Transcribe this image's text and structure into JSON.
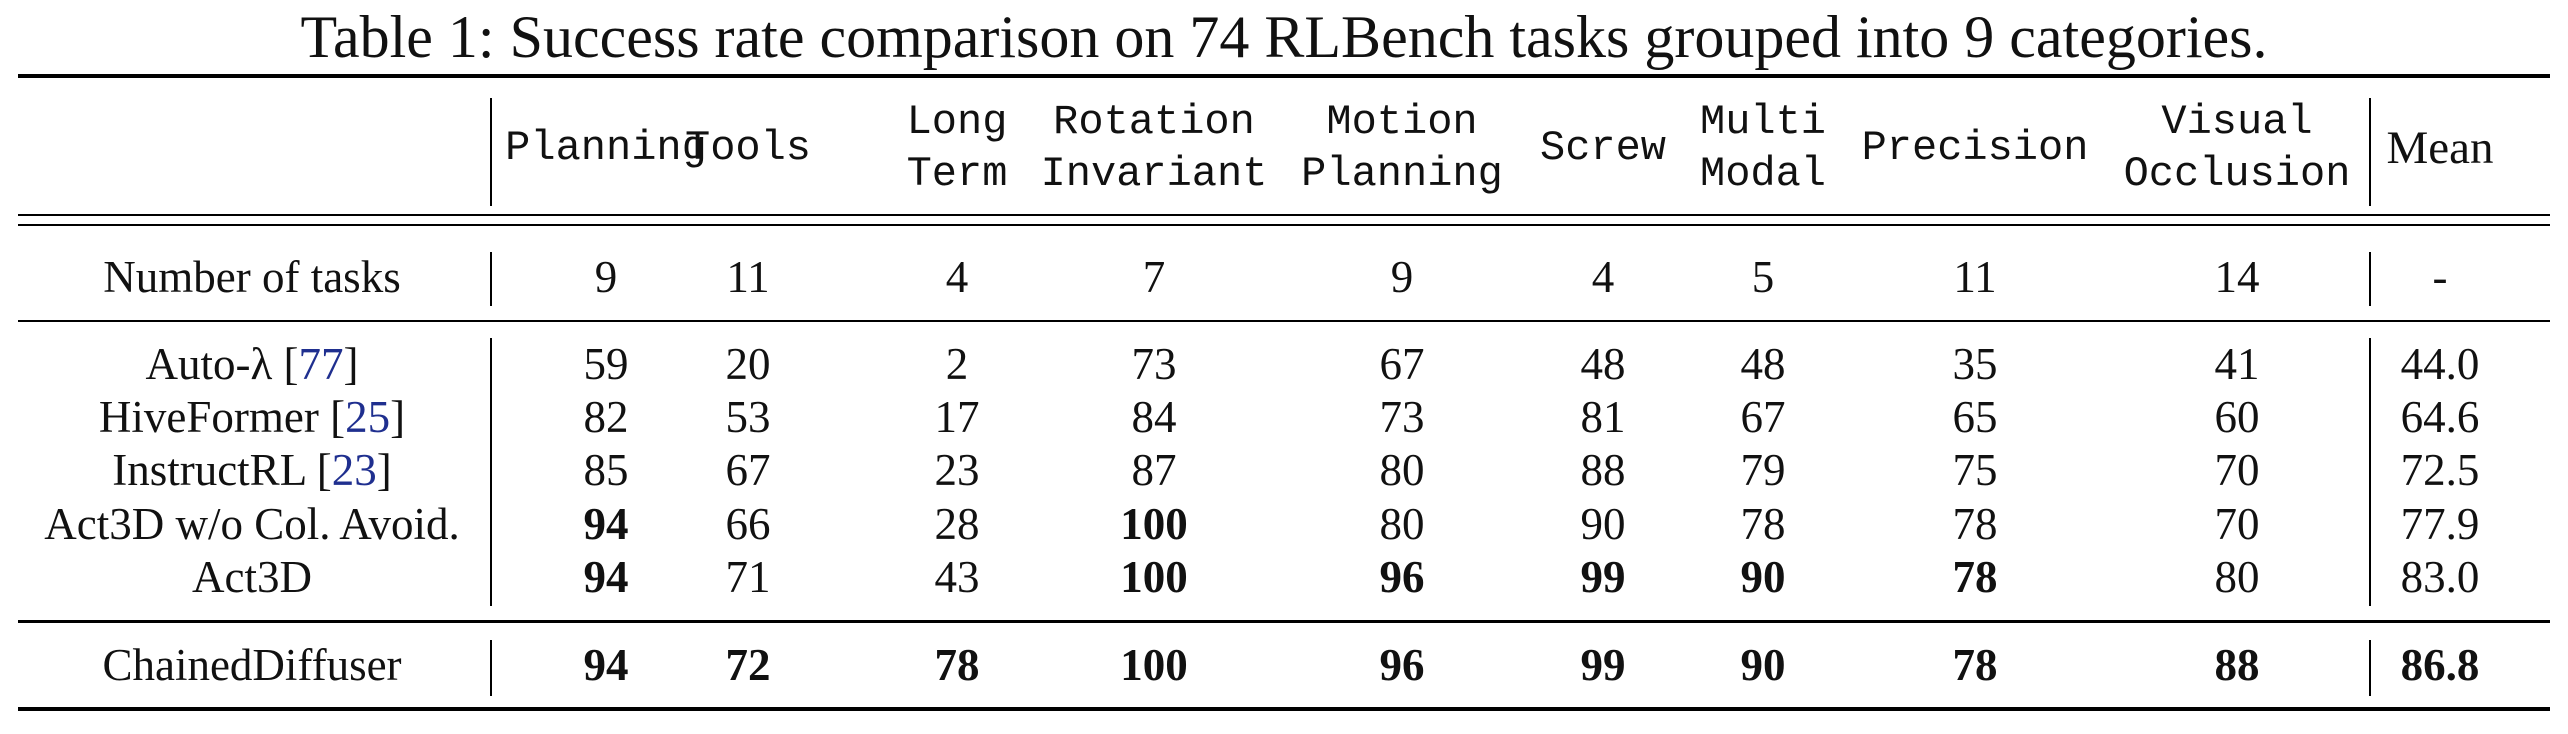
{
  "caption": "Table 1: Success rate comparison on 74 RLBench tasks grouped into 9 categories.",
  "columns": [
    {
      "line1": "Planning",
      "line2": ""
    },
    {
      "line1": "Tools",
      "line2": ""
    },
    {
      "line1": "Long",
      "line2": "Term"
    },
    {
      "line1": "Rotation",
      "line2": "Invariant"
    },
    {
      "line1": "Motion",
      "line2": "Planning"
    },
    {
      "line1": "Screw",
      "line2": ""
    },
    {
      "line1": "Multi",
      "line2": "Modal"
    },
    {
      "line1": "Precision",
      "line2": ""
    },
    {
      "line1": "Visual",
      "line2": "Occlusion"
    }
  ],
  "mean_header": "Mean",
  "tasks_row": {
    "label": "Number of tasks",
    "values": [
      "9",
      "11",
      "4",
      "7",
      "9",
      "4",
      "5",
      "11",
      "14"
    ],
    "mean": "-"
  },
  "baselines": [
    {
      "name": "Auto-λ",
      "cite": "77",
      "values": [
        "59",
        "20",
        "2",
        "73",
        "67",
        "48",
        "48",
        "35",
        "41"
      ],
      "bold": [
        false,
        false,
        false,
        false,
        false,
        false,
        false,
        false,
        false
      ],
      "mean": "44.0",
      "mean_bold": false
    },
    {
      "name": "HiveFormer",
      "cite": "25",
      "values": [
        "82",
        "53",
        "17",
        "84",
        "73",
        "81",
        "67",
        "65",
        "60"
      ],
      "bold": [
        false,
        false,
        false,
        false,
        false,
        false,
        false,
        false,
        false
      ],
      "mean": "64.6",
      "mean_bold": false
    },
    {
      "name": "InstructRL",
      "cite": "23",
      "values": [
        "85",
        "67",
        "23",
        "87",
        "80",
        "88",
        "79",
        "75",
        "70"
      ],
      "bold": [
        false,
        false,
        false,
        false,
        false,
        false,
        false,
        false,
        false
      ],
      "mean": "72.5",
      "mean_bold": false
    },
    {
      "name": "Act3D w/o Col. Avoid.",
      "cite": "",
      "values": [
        "94",
        "66",
        "28",
        "100",
        "80",
        "90",
        "78",
        "78",
        "70"
      ],
      "bold": [
        true,
        false,
        false,
        true,
        false,
        false,
        false,
        false,
        false
      ],
      "mean": "77.9",
      "mean_bold": false
    },
    {
      "name": "Act3D",
      "cite": "",
      "values": [
        "94",
        "71",
        "43",
        "100",
        "96",
        "99",
        "90",
        "78",
        "80"
      ],
      "bold": [
        true,
        false,
        false,
        true,
        true,
        true,
        true,
        true,
        false
      ],
      "mean": "83.0",
      "mean_bold": false
    }
  ],
  "ours": {
    "name": "ChainedDiffuser",
    "cite": "",
    "values": [
      "94",
      "72",
      "78",
      "100",
      "96",
      "99",
      "90",
      "78",
      "88"
    ],
    "bold": [
      true,
      true,
      true,
      true,
      true,
      true,
      true,
      true,
      true
    ],
    "mean": "86.8",
    "mean_bold": true
  }
}
